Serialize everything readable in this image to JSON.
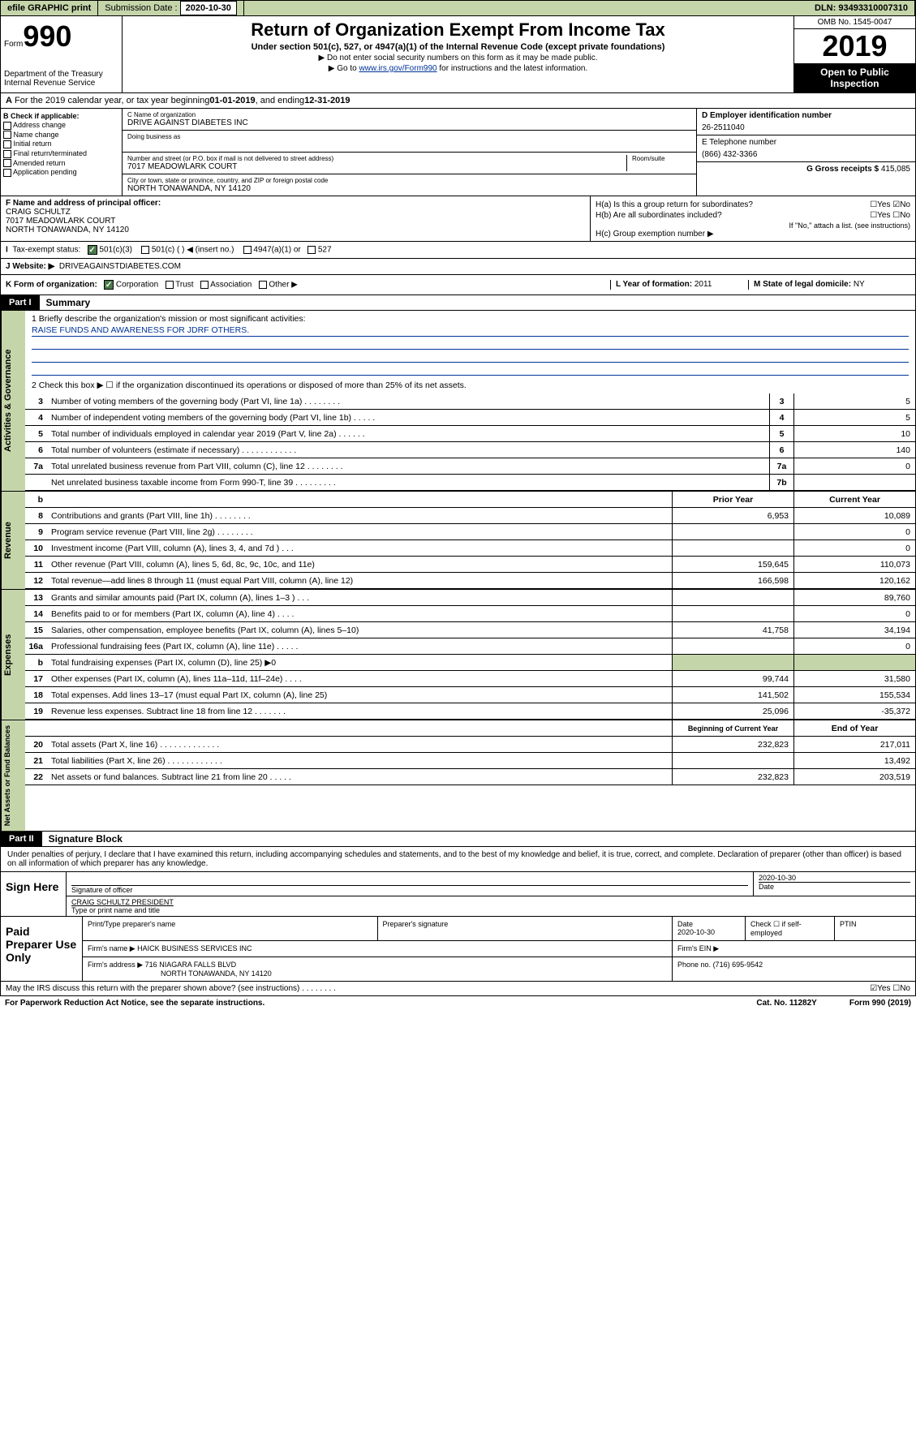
{
  "topbar": {
    "efile": "efile GRAPHIC print",
    "subm_label": "Submission Date :",
    "subm_date": "2020-10-30",
    "dln": "DLN: 93493310007310"
  },
  "header": {
    "form_prefix": "Form",
    "form_num": "990",
    "dept": "Department of the Treasury\nInternal Revenue Service",
    "title": "Return of Organization Exempt From Income Tax",
    "subtitle": "Under section 501(c), 527, or 4947(a)(1) of the Internal Revenue Code (except private foundations)",
    "note1": "▶ Do not enter social security numbers on this form as it may be made public.",
    "note2_pre": "▶ Go to ",
    "note2_link": "www.irs.gov/Form990",
    "note2_post": " for instructions and the latest information.",
    "omb": "OMB No. 1545-0047",
    "year": "2019",
    "open": "Open to Public Inspection"
  },
  "period": {
    "text_pre": "For the 2019 calendar year, or tax year beginning ",
    "begin": "01-01-2019",
    "mid": " , and ending ",
    "end": "12-31-2019"
  },
  "boxB": {
    "label": "B Check if applicable:",
    "items": [
      "Address change",
      "Name change",
      "Initial return",
      "Final return/terminated",
      "Amended return",
      "Application pending"
    ]
  },
  "boxC": {
    "name_lbl": "C Name of organization",
    "name": "DRIVE AGAINST DIABETES INC",
    "dba_lbl": "Doing business as",
    "addr_lbl": "Number and street (or P.O. box if mail is not delivered to street address)",
    "room_lbl": "Room/suite",
    "addr": "7017 MEADOWLARK COURT",
    "city_lbl": "City or town, state or province, country, and ZIP or foreign postal code",
    "city": "NORTH TONAWANDA, NY  14120"
  },
  "boxD": {
    "ein_lbl": "D Employer identification number",
    "ein": "26-2511040",
    "phone_lbl": "E Telephone number",
    "phone": "(866) 432-3366",
    "gross_lbl": "G Gross receipts $",
    "gross": "415,085"
  },
  "boxF": {
    "lbl": "F Name and address of principal officer:",
    "name": "CRAIG SCHULTZ",
    "addr1": "7017 MEADOWLARK COURT",
    "addr2": "NORTH TONAWANDA, NY  14120"
  },
  "boxH": {
    "a": "H(a)  Is this a group return for subordinates?",
    "a_ans": "☐Yes ☑No",
    "b": "H(b)  Are all subordinates included?",
    "b_ans": "☐Yes ☐No",
    "b_note": "If \"No,\" attach a list. (see instructions)",
    "c": "H(c)  Group exemption number ▶"
  },
  "taxstatus": {
    "lbl": "Tax-exempt status:",
    "opts": [
      "501(c)(3)",
      "501(c) (  ) ◀ (insert no.)",
      "4947(a)(1) or",
      "527"
    ]
  },
  "website": {
    "lbl": "J   Website: ▶",
    "val": "DRIVEAGAINSTDIABETES.COM"
  },
  "boxK": {
    "lbl": "K Form of organization:",
    "opts": [
      "Corporation",
      "Trust",
      "Association",
      "Other ▶"
    ],
    "L_lbl": "L Year of formation:",
    "L_val": "2011",
    "M_lbl": "M State of legal domicile:",
    "M_val": "NY"
  },
  "part1": {
    "hdr": "Part I",
    "title": "Summary"
  },
  "mission": {
    "q1": "1  Briefly describe the organization's mission or most significant activities:",
    "text": "RAISE FUNDS AND AWARENESS FOR JDRF OTHERS.",
    "q2": "2   Check this box ▶ ☐  if the organization discontinued its operations or disposed of more than 25% of its net assets."
  },
  "gov_lines": [
    {
      "n": "3",
      "d": "Number of voting members of the governing body (Part VI, line 1a)  .    .    .    .    .    .    .    .",
      "b": "3",
      "v": "5"
    },
    {
      "n": "4",
      "d": "Number of independent voting members of the governing body (Part VI, line 1b)  .    .    .    .    .",
      "b": "4",
      "v": "5"
    },
    {
      "n": "5",
      "d": "Total number of individuals employed in calendar year 2019 (Part V, line 2a)  .    .    .    .    .    .",
      "b": "5",
      "v": "10"
    },
    {
      "n": "6",
      "d": "Total number of volunteers (estimate if necessary)  .    .    .    .    .    .    .    .    .    .    .    .",
      "b": "6",
      "v": "140"
    },
    {
      "n": "7a",
      "d": "Total unrelated business revenue from Part VIII, column (C), line 12  .    .    .    .    .    .    .    .",
      "b": "7a",
      "v": "0"
    },
    {
      "n": "",
      "d": "Net unrelated business taxable income from Form 990-T, line 39  .    .    .    .    .    .    .    .    .",
      "b": "7b",
      "v": ""
    }
  ],
  "rev_hdr": {
    "b": "b",
    "py": "Prior Year",
    "cy": "Current Year"
  },
  "rev_lines": [
    {
      "n": "8",
      "d": "Contributions and grants (Part VIII, line 1h)  .    .    .    .    .    .    .    .",
      "py": "6,953",
      "cy": "10,089"
    },
    {
      "n": "9",
      "d": "Program service revenue (Part VIII, line 2g)  .    .    .    .    .    .    .    .",
      "py": "",
      "cy": "0"
    },
    {
      "n": "10",
      "d": "Investment income (Part VIII, column (A), lines 3, 4, and 7d )  .    .    .",
      "py": "",
      "cy": "0"
    },
    {
      "n": "11",
      "d": "Other revenue (Part VIII, column (A), lines 5, 6d, 8c, 9c, 10c, and 11e)",
      "py": "159,645",
      "cy": "110,073"
    },
    {
      "n": "12",
      "d": "Total revenue—add lines 8 through 11 (must equal Part VIII, column (A), line 12)",
      "py": "166,598",
      "cy": "120,162"
    }
  ],
  "exp_lines": [
    {
      "n": "13",
      "d": "Grants and similar amounts paid (Part IX, column (A), lines 1–3 )  .    .    .",
      "py": "",
      "cy": "89,760"
    },
    {
      "n": "14",
      "d": "Benefits paid to or for members (Part IX, column (A), line 4)  .    .    .    .",
      "py": "",
      "cy": "0"
    },
    {
      "n": "15",
      "d": "Salaries, other compensation, employee benefits (Part IX, column (A), lines 5–10)",
      "py": "41,758",
      "cy": "34,194"
    },
    {
      "n": "16a",
      "d": "Professional fundraising fees (Part IX, column (A), line 11e)  .    .    .    .    .",
      "py": "",
      "cy": "0"
    },
    {
      "n": "b",
      "d": "Total fundraising expenses (Part IX, column (D), line 25) ▶0",
      "py": "shaded",
      "cy": "shaded"
    },
    {
      "n": "17",
      "d": "Other expenses (Part IX, column (A), lines 11a–11d, 11f–24e)  .    .    .    .",
      "py": "99,744",
      "cy": "31,580"
    },
    {
      "n": "18",
      "d": "Total expenses. Add lines 13–17 (must equal Part IX, column (A), line 25)",
      "py": "141,502",
      "cy": "155,534"
    },
    {
      "n": "19",
      "d": "Revenue less expenses. Subtract line 18 from line 12  .    .    .    .    .    .    .",
      "py": "25,096",
      "cy": "-35,372"
    }
  ],
  "net_hdr": {
    "py": "Beginning of Current Year",
    "cy": "End of Year"
  },
  "net_lines": [
    {
      "n": "20",
      "d": "Total assets (Part X, line 16)  .    .    .    .    .    .    .    .    .    .    .    .    .",
      "py": "232,823",
      "cy": "217,011"
    },
    {
      "n": "21",
      "d": "Total liabilities (Part X, line 26)  .    .    .    .    .    .    .    .    .    .    .    .",
      "py": "",
      "cy": "13,492"
    },
    {
      "n": "22",
      "d": "Net assets or fund balances. Subtract line 21 from line 20  .    .    .    .    .",
      "py": "232,823",
      "cy": "203,519"
    }
  ],
  "part2": {
    "hdr": "Part II",
    "title": "Signature Block"
  },
  "sig": {
    "decl": "Under penalties of perjury, I declare that I have examined this return, including accompanying schedules and statements, and to the best of my knowledge and belief, it is true, correct, and complete. Declaration of preparer (other than officer) is based on all information of which preparer has any knowledge.",
    "sign_here": "Sign Here",
    "sig_officer": "Signature of officer",
    "date": "2020-10-30",
    "date_lbl": "Date",
    "name_title": "CRAIG SCHULTZ  PRESIDENT",
    "type_lbl": "Type or print name and title"
  },
  "prep": {
    "label": "Paid Preparer Use Only",
    "h1": "Print/Type preparer's name",
    "h2": "Preparer's signature",
    "h3_lbl": "Date",
    "h3": "2020-10-30",
    "h4": "Check ☐ if self-employed",
    "h5": "PTIN",
    "firm_lbl": "Firm's name     ▶",
    "firm": "HAICK BUSINESS SERVICES INC",
    "ein_lbl": "Firm's EIN ▶",
    "addr_lbl": "Firm's address ▶",
    "addr1": "716 NIAGARA FALLS BLVD",
    "addr2": "NORTH TONAWANDA, NY  14120",
    "phone_lbl": "Phone no.",
    "phone": "(716) 695-9542"
  },
  "footer": {
    "discuss": "May the IRS discuss this return with the preparer shown above? (see instructions)  .    .    .    .    .    .    .    .",
    "ans": "☑Yes  ☐No",
    "pra": "For Paperwork Reduction Act Notice, see the separate instructions.",
    "cat": "Cat. No. 11282Y",
    "form": "Form 990 (2019)"
  },
  "vtabs": {
    "gov": "Activities & Governance",
    "rev": "Revenue",
    "exp": "Expenses",
    "net": "Net Assets or Fund Balances"
  }
}
